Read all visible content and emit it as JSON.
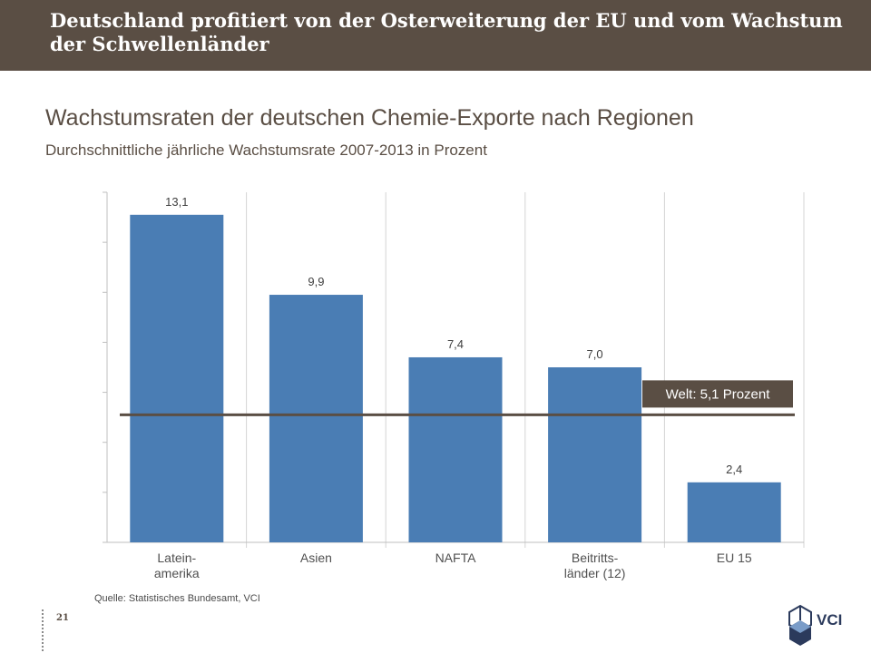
{
  "header": {
    "title": "Deutschland profitiert von der Osterweiterung der EU und vom Wachstum der Schwellenländer"
  },
  "slide": {
    "title": "Wachstumsraten der deutschen Chemie-Exporte nach Regionen",
    "subtitle": "Durchschnittliche jährliche Wachstumsrate 2007-2013 in Prozent"
  },
  "chart_data": {
    "type": "bar",
    "categories": [
      [
        "Latein-",
        "amerika"
      ],
      [
        "Asien"
      ],
      [
        "NAFTA"
      ],
      [
        "Beitritts-",
        "länder (12)"
      ],
      [
        "EU 15"
      ]
    ],
    "values": [
      13.1,
      9.9,
      7.4,
      7.0,
      2.4
    ],
    "value_labels": [
      "13,1",
      "9,9",
      "7,4",
      "7,0",
      "2,4"
    ],
    "ylim": [
      0,
      14
    ],
    "y_ticks": [
      0,
      2,
      4,
      6,
      8,
      10,
      12,
      14
    ],
    "reference_line": {
      "value": 5.1,
      "label": "Welt: 5,1 Prozent"
    },
    "bar_color": "#4a7db4",
    "line_color": "#5a4e44"
  },
  "footer": {
    "source": "Quelle:  Statistisches Bundesamt, VCI",
    "page_number": "21",
    "logo_text": "VCI"
  }
}
